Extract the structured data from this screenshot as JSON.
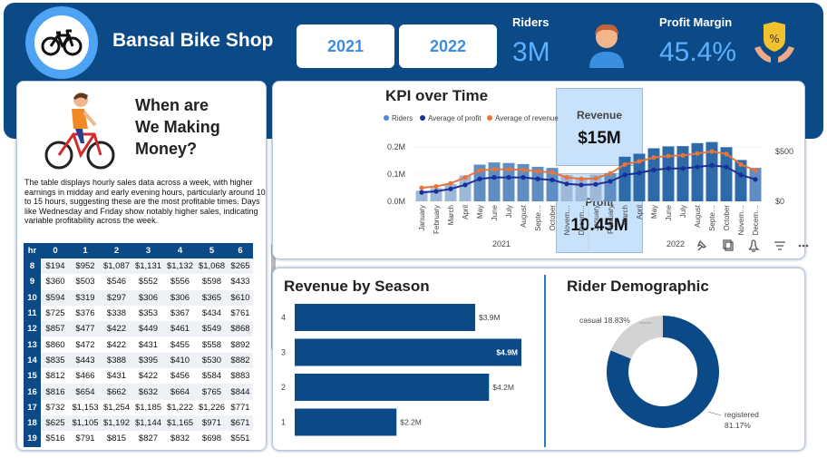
{
  "header": {
    "title": "Bansal Bike Shop",
    "years": [
      "2021",
      "2022"
    ],
    "riders": {
      "label": "Riders",
      "value": "3M"
    },
    "profit_margin": {
      "label": "Profit Margin",
      "value": "45.4%"
    },
    "icons": [
      "bicycle-icon",
      "person-icon",
      "money-hand-icon"
    ]
  },
  "left_panel": {
    "title": [
      "When are",
      "We Making",
      "Money?"
    ],
    "description": "The table displays hourly sales data across a week, with higher earnings in midday and early evening hours, particularly around 10 to 15 hours, suggesting these are the most profitable times. Days like Wednesday and Friday show notably higher sales, indicating variable profitability across the week.",
    "table": {
      "columns": [
        "hr",
        "0",
        "1",
        "2",
        "3",
        "4",
        "5",
        "6"
      ],
      "rows": [
        [
          "8",
          "$194",
          "$952",
          "$1,087",
          "$1,131",
          "$1,132",
          "$1,068",
          "$265"
        ],
        [
          "9",
          "$360",
          "$503",
          "$546",
          "$552",
          "$556",
          "$598",
          "$433"
        ],
        [
          "10",
          "$594",
          "$319",
          "$297",
          "$306",
          "$306",
          "$365",
          "$610"
        ],
        [
          "11",
          "$725",
          "$376",
          "$338",
          "$353",
          "$367",
          "$434",
          "$761"
        ],
        [
          "12",
          "$857",
          "$477",
          "$422",
          "$449",
          "$461",
          "$549",
          "$868"
        ],
        [
          "13",
          "$860",
          "$472",
          "$422",
          "$431",
          "$455",
          "$558",
          "$892"
        ],
        [
          "14",
          "$835",
          "$443",
          "$388",
          "$395",
          "$410",
          "$530",
          "$882"
        ],
        [
          "15",
          "$812",
          "$466",
          "$431",
          "$422",
          "$456",
          "$584",
          "$883"
        ],
        [
          "16",
          "$816",
          "$654",
          "$662",
          "$632",
          "$664",
          "$765",
          "$844"
        ],
        [
          "17",
          "$732",
          "$1,153",
          "$1,254",
          "$1,185",
          "$1,222",
          "$1,226",
          "$771"
        ],
        [
          "18",
          "$625",
          "$1,105",
          "$1,192",
          "$1,144",
          "$1,165",
          "$971",
          "$671"
        ],
        [
          "19",
          "$516",
          "$791",
          "$815",
          "$827",
          "$832",
          "$698",
          "$551"
        ]
      ]
    }
  },
  "summary": {
    "revenue": {
      "label": "Revenue",
      "value": "$15M"
    },
    "profit": {
      "label": "Profit",
      "value": "10.45M"
    }
  },
  "chart_data": [
    {
      "type": "bar",
      "title": "KPI over Time",
      "legend": [
        "Riders",
        "Average of profit",
        "Average of revenue"
      ],
      "legend_placement": "top-left",
      "colors": {
        "riders": "#4a8ad8",
        "profit": "#1a2f9a",
        "revenue": "#e8743b"
      },
      "y_left_ticks": [
        "0.0M",
        "0.1M",
        "0.2M"
      ],
      "y_right_ticks": [
        "$0",
        "$500"
      ],
      "ylim_left": [
        0,
        0.22
      ],
      "ylim_right": [
        0,
        600
      ],
      "categories": [
        "January",
        "February",
        "March",
        "April",
        "May",
        "June",
        "July",
        "August",
        "Septe...",
        "October",
        "Novem...",
        "Decem...",
        "January",
        "February",
        "March",
        "April",
        "May",
        "June",
        "July",
        "August",
        "Septe...",
        "October",
        "Novem...",
        "Decem..."
      ],
      "tick_labels": [
        "January",
        "February",
        "March",
        "April",
        "May",
        "June",
        "July",
        "August",
        "Septe…",
        "October",
        "Novem…",
        "Decem…",
        "January",
        "February",
        "March",
        "April",
        "May",
        "June",
        "July",
        "August",
        "Septe…",
        "October",
        "Novem…",
        "Decem…"
      ],
      "groups": [
        {
          "label": "2021",
          "count": 12
        },
        {
          "label": "2022",
          "count": 12
        }
      ],
      "series": [
        {
          "name": "Riders",
          "values": [
            0.039,
            0.049,
            0.064,
            0.095,
            0.135,
            0.143,
            0.141,
            0.137,
            0.127,
            0.123,
            0.096,
            0.087,
            0.098,
            0.104,
            0.164,
            0.175,
            0.195,
            0.202,
            0.203,
            0.214,
            0.218,
            0.199,
            0.152,
            0.123
          ]
        },
        {
          "name": "Average of profit",
          "values": [
            90,
            100,
            125,
            165,
            225,
            240,
            240,
            240,
            225,
            215,
            175,
            165,
            170,
            200,
            265,
            285,
            315,
            330,
            330,
            345,
            360,
            345,
            265,
            220
          ]
        },
        {
          "name": "Average of revenue",
          "values": [
            135,
            150,
            180,
            240,
            310,
            320,
            320,
            315,
            300,
            290,
            240,
            225,
            230,
            280,
            370,
            400,
            440,
            455,
            460,
            480,
            500,
            475,
            370,
            310
          ]
        }
      ]
    },
    {
      "type": "bar",
      "orientation": "horizontal",
      "title": "Revenue by Season",
      "categories": [
        "4",
        "3",
        "2",
        "1"
      ],
      "values": [
        3.9,
        4.9,
        4.2,
        2.2
      ],
      "data_labels": [
        "$3.9M",
        "$4.9M",
        "$4.2M",
        "$2.2M"
      ],
      "colors": {
        "bar": "#0b4a86"
      }
    },
    {
      "type": "pie",
      "title": "Rider Demographic",
      "labels": [
        "casual",
        "registered"
      ],
      "values": [
        18.83,
        81.17
      ],
      "data_labels": [
        "casual 18.83%",
        "registered 81.17%"
      ],
      "colors": [
        "#d3d3d3",
        "#0b4a86"
      ]
    }
  ]
}
